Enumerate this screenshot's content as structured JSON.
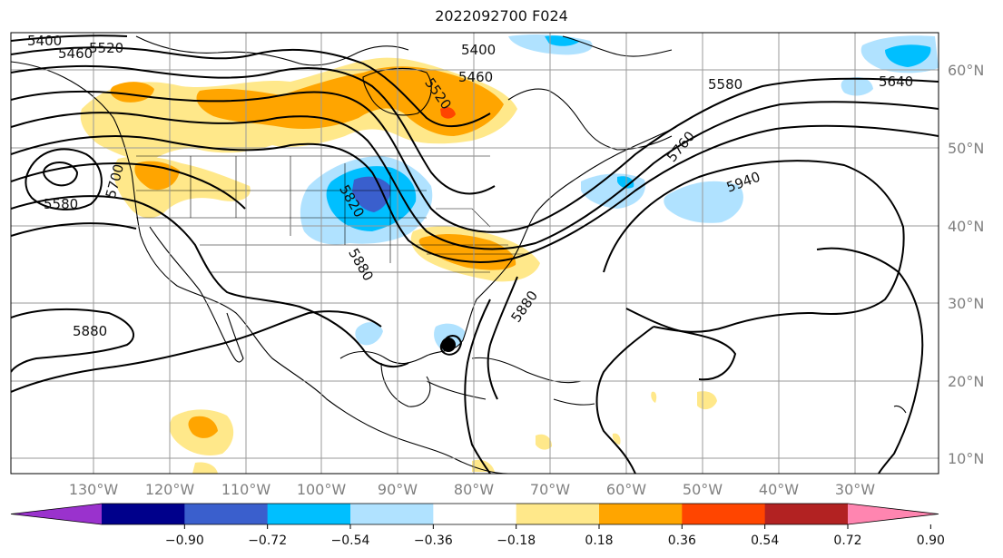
{
  "title": "2022092700 F024",
  "map": {
    "lon_range": [
      -143,
      -21
    ],
    "lat_range": [
      8,
      65
    ],
    "grid": true,
    "lon_labels": [
      "130°W",
      "120°W",
      "110°W",
      "100°W",
      "90°W",
      "80°W",
      "70°W",
      "60°W",
      "50°W",
      "40°W",
      "30°W"
    ],
    "lat_labels": [
      "10°N",
      "20°N",
      "30°N",
      "40°N",
      "50°N",
      "60°N"
    ],
    "contour_labels": [
      "5400",
      "5460",
      "5520",
      "5400",
      "5460",
      "5520",
      "5580",
      "5640",
      "5700",
      "5580",
      "5820",
      "5880",
      "5880",
      "5760",
      "5940",
      "5880"
    ]
  },
  "colorbar": {
    "colors": [
      "#9a32cd",
      "#00008b",
      "#3a5fcd",
      "#00bfff",
      "#b0e2ff",
      "#ffffff",
      "#ffe88a",
      "#ffa500",
      "#ff4500",
      "#b22222",
      "#ff85b0"
    ],
    "ticks": [
      "−0.90",
      "−0.72",
      "−0.54",
      "−0.36",
      "−0.18",
      "0.18",
      "0.36",
      "0.54",
      "0.72",
      "0.90"
    ]
  }
}
